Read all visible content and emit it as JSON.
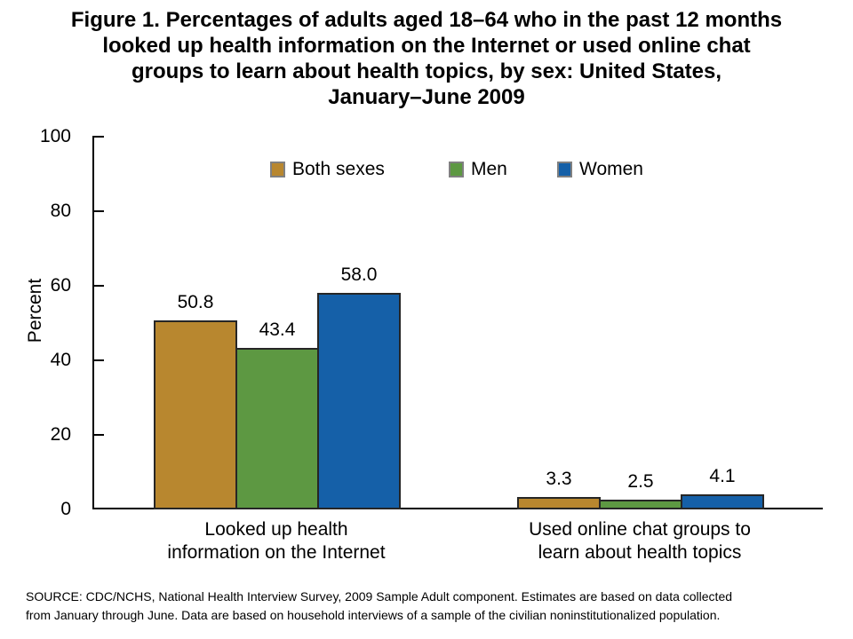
{
  "figure": {
    "title_lines": [
      "Figure 1. Percentages of adults aged 18–64 who in the past 12 months",
      "looked up health information on the Internet or used online chat",
      "groups to learn about health topics, by sex: United States,",
      "January–June 2009"
    ],
    "source_lines": [
      "SOURCE: CDC/NCHS, National Health Interview Survey, 2009 Sample Adult component. Estimates are based on data collected",
      "from January through June. Data are based on household interviews of a sample of the civilian noninstitutionalized population."
    ]
  },
  "category_labels": [
    "Looked up health\ninformation on the Internet",
    "Used online chat groups to\nlearn about health topics"
  ],
  "colors": {
    "both_sexes": "#B8872F",
    "men": "#5D9842",
    "women": "#1560A8",
    "bar_border": "#262626",
    "legend_swatch_border": "#808080",
    "axis": "#000000"
  },
  "chart_data": {
    "type": "bar",
    "title": "Figure 1. Percentages of adults aged 18–64 who in the past 12 months looked up health information on the Internet or used online chat groups to learn about health topics, by sex: United States, January–June 2009",
    "categories": [
      "Looked up health information on the Internet",
      "Used online chat groups to learn about health topics"
    ],
    "series": [
      {
        "name": "Both sexes",
        "color": "#B8872F",
        "values": [
          50.8,
          3.3
        ]
      },
      {
        "name": "Men",
        "color": "#5D9842",
        "values": [
          43.4,
          2.5
        ]
      },
      {
        "name": "Women",
        "color": "#1560A8",
        "values": [
          58.0,
          4.1
        ]
      }
    ],
    "xlabel": "",
    "ylabel": "Percent",
    "ylim": [
      0,
      100
    ],
    "yticks": [
      0,
      20,
      40,
      60,
      80,
      100
    ],
    "value_label_decimals": 1,
    "legend_position": "top-center",
    "grid": false
  }
}
